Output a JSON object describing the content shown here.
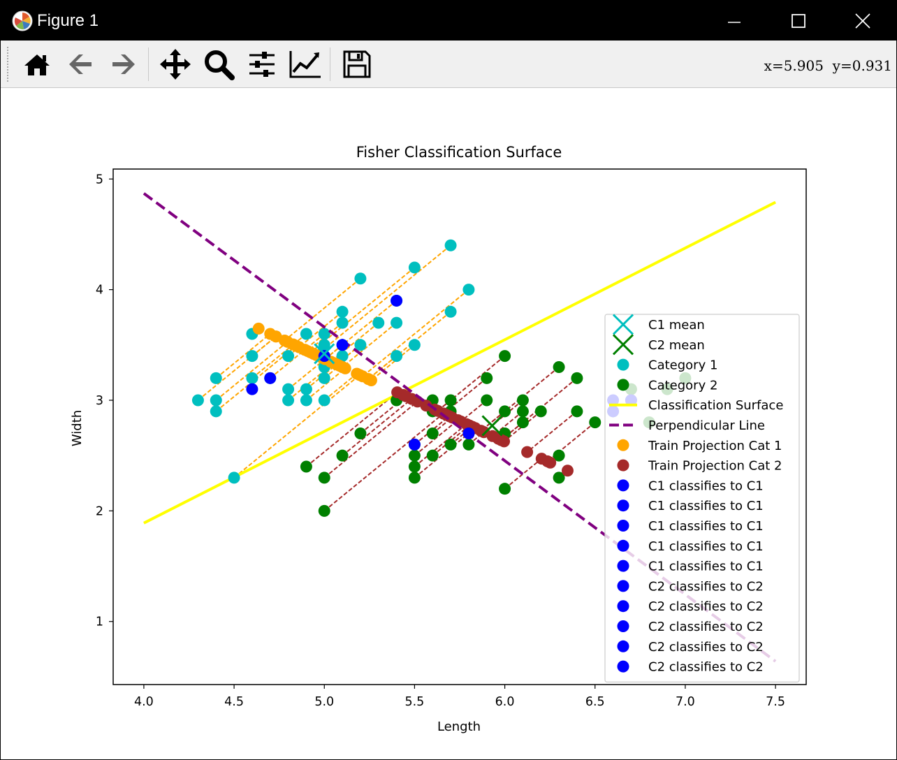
{
  "window": {
    "title": "Figure 1",
    "controls": {
      "minimize": "minimize",
      "maximize": "maximize",
      "close": "close"
    }
  },
  "toolbar": {
    "buttons": [
      {
        "name": "home",
        "icon": "home-icon"
      },
      {
        "name": "back",
        "icon": "arrow-left-icon"
      },
      {
        "name": "forward",
        "icon": "arrow-right-icon"
      },
      {
        "name": "pan",
        "icon": "move-icon"
      },
      {
        "name": "zoom",
        "icon": "zoom-icon"
      },
      {
        "name": "subplots",
        "icon": "sliders-icon"
      },
      {
        "name": "edit-axes",
        "icon": "line-chart-icon"
      },
      {
        "name": "save",
        "icon": "save-icon"
      }
    ],
    "coords": "x=5.905  y=0.931"
  },
  "chart_data": {
    "type": "scatter",
    "title": "Fisher Classification Surface",
    "xlabel": "Length",
    "ylabel": "Width",
    "xlim": [
      3.83,
      7.67
    ],
    "ylim": [
      0.43,
      5.09
    ],
    "xticks": [
      "4.0",
      "4.5",
      "5.0",
      "5.5",
      "6.0",
      "6.5",
      "7.0",
      "7.5"
    ],
    "yticks": [
      "1",
      "2",
      "3",
      "4",
      "5"
    ],
    "grid": false,
    "legend_position": "center-right",
    "colors": {
      "cat1": "#00bfbf",
      "cat2": "#008000",
      "surface": "#ffff00",
      "perp": "#800080",
      "proj1": "#ffa500",
      "proj2": "#a52a2a",
      "test": "#0000ff"
    },
    "direction": [
      0.8,
      -0.6
    ],
    "projection_anchor": [
      5.9,
      2.7
    ],
    "category1": [
      [
        5.7,
        4.4
      ],
      [
        5.2,
        4.1
      ],
      [
        5.5,
        4.2
      ],
      [
        5.8,
        4.0
      ],
      [
        5.4,
        3.9
      ],
      [
        5.7,
        3.8
      ],
      [
        5.1,
        3.8
      ],
      [
        5.4,
        3.7
      ],
      [
        5.3,
        3.7
      ],
      [
        5.1,
        3.7
      ],
      [
        4.6,
        3.6
      ],
      [
        4.9,
        3.6
      ],
      [
        5.0,
        3.6
      ],
      [
        5.1,
        3.5
      ],
      [
        5.2,
        3.5
      ],
      [
        5.5,
        3.5
      ],
      [
        5.0,
        3.5
      ],
      [
        4.6,
        3.4
      ],
      [
        4.8,
        3.4
      ],
      [
        5.0,
        3.4
      ],
      [
        5.4,
        3.4
      ],
      [
        5.1,
        3.4
      ],
      [
        5.1,
        3.3
      ],
      [
        5.0,
        3.3
      ],
      [
        4.4,
        3.2
      ],
      [
        4.6,
        3.2
      ],
      [
        5.0,
        3.2
      ],
      [
        4.7,
        3.2
      ],
      [
        4.8,
        3.1
      ],
      [
        4.9,
        3.1
      ],
      [
        4.3,
        3.0
      ],
      [
        4.4,
        3.0
      ],
      [
        4.8,
        3.0
      ],
      [
        4.9,
        3.0
      ],
      [
        5.0,
        3.0
      ],
      [
        4.4,
        2.9
      ],
      [
        4.5,
        2.3
      ]
    ],
    "category2": [
      [
        6.0,
        3.4
      ],
      [
        5.9,
        3.2
      ],
      [
        6.3,
        3.3
      ],
      [
        6.4,
        3.2
      ],
      [
        6.1,
        3.0
      ],
      [
        5.9,
        3.0
      ],
      [
        6.1,
        2.9
      ],
      [
        5.6,
        3.0
      ],
      [
        5.4,
        3.0
      ],
      [
        5.7,
        3.0
      ],
      [
        5.6,
        2.9
      ],
      [
        6.0,
        2.9
      ],
      [
        5.7,
        2.9
      ],
      [
        6.2,
        2.9
      ],
      [
        6.4,
        2.9
      ],
      [
        6.1,
        2.8
      ],
      [
        6.5,
        2.8
      ],
      [
        5.8,
        2.7
      ],
      [
        5.2,
        2.7
      ],
      [
        5.6,
        2.7
      ],
      [
        6.0,
        2.7
      ],
      [
        5.8,
        2.6
      ],
      [
        5.7,
        2.6
      ],
      [
        5.5,
        2.6
      ],
      [
        5.1,
        2.5
      ],
      [
        5.5,
        2.5
      ],
      [
        5.6,
        2.5
      ],
      [
        6.3,
        2.5
      ],
      [
        4.9,
        2.4
      ],
      [
        5.5,
        2.4
      ],
      [
        5.0,
        2.3
      ],
      [
        5.5,
        2.3
      ],
      [
        6.3,
        2.3
      ],
      [
        6.0,
        2.2
      ],
      [
        5.0,
        2.0
      ]
    ],
    "category2_faded": [
      [
        6.7,
        3.1
      ],
      [
        6.9,
        3.1
      ],
      [
        7.0,
        3.2
      ],
      [
        6.7,
        3.0
      ],
      [
        6.6,
        2.9
      ],
      [
        6.8,
        2.8
      ]
    ],
    "c1_mean": [
      5.0,
      3.42
    ],
    "c2_mean": [
      5.93,
      2.77
    ],
    "surface_line": {
      "x": [
        4.0,
        7.5
      ],
      "y": [
        1.89,
        4.79
      ]
    },
    "perpendicular_line": {
      "x": [
        4.0,
        7.5
      ],
      "y": [
        4.87,
        0.64
      ]
    },
    "test_points": [
      [
        5.4,
        3.9
      ],
      [
        5.1,
        3.5
      ],
      [
        5.0,
        3.4
      ],
      [
        4.7,
        3.2
      ],
      [
        4.6,
        3.1
      ],
      [
        5.5,
        2.6
      ],
      [
        5.8,
        2.7
      ],
      [
        6.6,
        3.0
      ],
      [
        6.7,
        3.0
      ],
      [
        6.6,
        2.9
      ]
    ],
    "legend": [
      {
        "label": "C1 mean",
        "marker": "x",
        "color": "#00bfbf"
      },
      {
        "label": "C2 mean",
        "marker": "x",
        "color": "#008000"
      },
      {
        "label": "Category 1",
        "marker": "dot",
        "color": "#00bfbf"
      },
      {
        "label": "Category 2",
        "marker": "dot",
        "color": "#008000"
      },
      {
        "label": "Classification Surface",
        "marker": "line",
        "color": "#ffff00"
      },
      {
        "label": "Perpendicular Line",
        "marker": "dash",
        "color": "#800080"
      },
      {
        "label": "Train Projection Cat 1",
        "marker": "dot",
        "color": "#ffa500"
      },
      {
        "label": "Train Projection Cat 2",
        "marker": "dot",
        "color": "#a52a2a"
      },
      {
        "label": "C1 classifies to C1",
        "marker": "dot",
        "color": "#0000ff"
      },
      {
        "label": "C1 classifies to C1",
        "marker": "dot",
        "color": "#0000ff"
      },
      {
        "label": "C1 classifies to C1",
        "marker": "dot",
        "color": "#0000ff"
      },
      {
        "label": "C1 classifies to C1",
        "marker": "dot",
        "color": "#0000ff"
      },
      {
        "label": "C1 classifies to C1",
        "marker": "dot",
        "color": "#0000ff"
      },
      {
        "label": "C2 classifies to C2",
        "marker": "dot",
        "color": "#0000ff"
      },
      {
        "label": "C2 classifies to C2",
        "marker": "dot",
        "color": "#0000ff"
      },
      {
        "label": "C2 classifies to C2",
        "marker": "dot",
        "color": "#0000ff"
      },
      {
        "label": "C2 classifies to C2",
        "marker": "dot",
        "color": "#0000ff"
      },
      {
        "label": "C2 classifies to C2",
        "marker": "dot",
        "color": "#0000ff"
      }
    ]
  }
}
